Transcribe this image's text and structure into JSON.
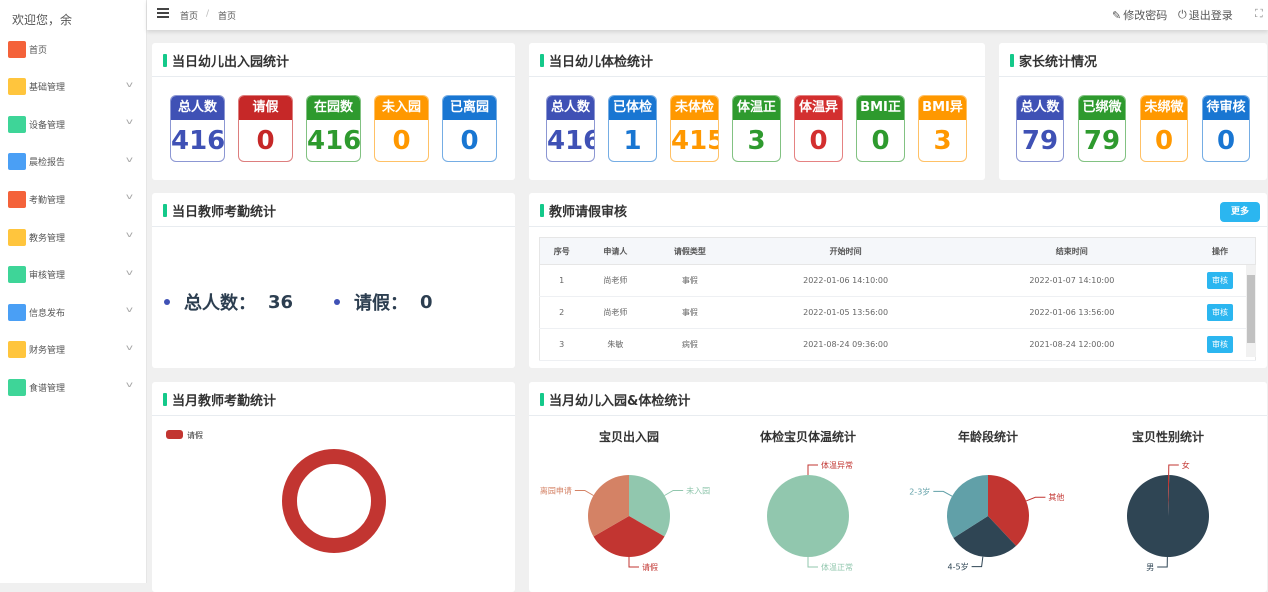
{
  "sidebar": {
    "welcome": "欢迎您，余",
    "items": [
      {
        "label": "首页",
        "icon": "home-icon",
        "color": "#f4623a",
        "chevron": false
      },
      {
        "label": "基础管理",
        "icon": "document-box-icon",
        "color": "#ffc53d",
        "chevron": true
      },
      {
        "label": "设备管理",
        "icon": "monitor-icon",
        "color": "#3ed598",
        "chevron": true
      },
      {
        "label": "晨检报告",
        "icon": "report-icon",
        "color": "#4a9ff5",
        "chevron": true
      },
      {
        "label": "考勤管理",
        "icon": "calendar-check-icon",
        "color": "#f4623a",
        "chevron": true
      },
      {
        "label": "教务管理",
        "icon": "briefcase-icon",
        "color": "#ffc53d",
        "chevron": true
      },
      {
        "label": "审核管理",
        "icon": "audit-icon",
        "color": "#3ed598",
        "chevron": true
      },
      {
        "label": "信息发布",
        "icon": "message-icon",
        "color": "#4a9ff5",
        "chevron": true
      },
      {
        "label": "财务管理",
        "icon": "wallet-icon",
        "color": "#ffc53d",
        "chevron": true
      },
      {
        "label": "食谱管理",
        "icon": "recipe-book-icon",
        "color": "#3ed598",
        "chevron": true
      }
    ]
  },
  "header": {
    "breadcrumb": [
      "首页",
      "首页"
    ],
    "separator": "/",
    "change_password": "修改密码",
    "logout": "退出登录"
  },
  "colors": {
    "indigo": "#3f51b5",
    "red": "#c62828",
    "green": "#2e9a2e",
    "orange": "#ff9800",
    "blue": "#1976d2",
    "accent": "#14c98a"
  },
  "kids_inout": {
    "title": "当日幼儿出入园统计",
    "stats": [
      {
        "label": "总人数",
        "value": "416",
        "color": "#3f51b5"
      },
      {
        "label": "请假",
        "value": "0",
        "color": "#c62828"
      },
      {
        "label": "在园数",
        "value": "416",
        "color": "#2e9a2e"
      },
      {
        "label": "未入园",
        "value": "0",
        "color": "#ff9800"
      },
      {
        "label": "已离园",
        "value": "0",
        "color": "#1976d2"
      }
    ]
  },
  "kids_health": {
    "title": "当日幼儿体检统计",
    "stats": [
      {
        "label": "总人数",
        "value": "416",
        "color": "#3f51b5"
      },
      {
        "label": "已体检",
        "value": "1",
        "color": "#1976d2"
      },
      {
        "label": "未体检",
        "value": "415",
        "color": "#ff9800"
      },
      {
        "label": "体温正",
        "value": "3",
        "color": "#2e9a2e"
      },
      {
        "label": "体温异",
        "value": "0",
        "color": "#d32f2f"
      },
      {
        "label": "BMI正",
        "value": "0",
        "color": "#2e9a2e"
      },
      {
        "label": "BMI异",
        "value": "3",
        "color": "#ff9800"
      }
    ]
  },
  "parents": {
    "title": "家长统计情况",
    "stats": [
      {
        "label": "总人数",
        "value": "79",
        "color": "#3f51b5"
      },
      {
        "label": "已绑微",
        "value": "79",
        "color": "#2e9a2e"
      },
      {
        "label": "未绑微",
        "value": "0",
        "color": "#ff9800"
      },
      {
        "label": "待审核",
        "value": "0",
        "color": "#1976d2"
      }
    ]
  },
  "teacher_today": {
    "title": "当日教师考勤统计",
    "total_label": "总人数：",
    "total": "36",
    "leave_label": "请假：",
    "leave": "0"
  },
  "leave_review": {
    "title": "教师请假审核",
    "more": "更多",
    "columns": [
      "序号",
      "申请人",
      "请假类型",
      "开始时间",
      "结束时间",
      "操作"
    ],
    "rows": [
      [
        "1",
        "尚老师",
        "事假",
        "2022-01-06 14:10:00",
        "2022-01-07 14:10:00",
        "审核"
      ],
      [
        "2",
        "尚老师",
        "事假",
        "2022-01-05 13:56:00",
        "2022-01-06 13:56:00",
        "审核"
      ],
      [
        "3",
        "朱敏",
        "病假",
        "2021-08-24 09:36:00",
        "2021-08-24 12:00:00",
        "审核"
      ]
    ]
  },
  "teacher_month": {
    "title": "当月教师考勤统计"
  },
  "kids_month": {
    "title": "当月幼儿入园&体检统计"
  },
  "chart_data": [
    {
      "type": "pie",
      "variant": "donut",
      "legend": [
        "请假"
      ],
      "legend_placement": "top-left",
      "slices": [
        {
          "name": "请假",
          "value": 100,
          "color": "#c23531"
        }
      ]
    },
    {
      "type": "pie",
      "title": "宝贝出入园",
      "slices": [
        {
          "name": "未入园",
          "value": 33.3,
          "color": "#91c7ae"
        },
        {
          "name": "请假",
          "value": 33.3,
          "color": "#c23531"
        },
        {
          "name": "离园申请",
          "value": 33.3,
          "color": "#d48265"
        }
      ]
    },
    {
      "type": "pie",
      "title": "体检宝贝体温统计",
      "slices": [
        {
          "name": "体温异常",
          "value": 0,
          "color": "#c23531"
        },
        {
          "name": "体温正常",
          "value": 100,
          "color": "#91c7ae"
        }
      ]
    },
    {
      "type": "pie",
      "title": "年龄段统计",
      "slices": [
        {
          "name": "其他",
          "value": 38,
          "color": "#c23531"
        },
        {
          "name": "4-5岁",
          "value": 28,
          "color": "#2f4554"
        },
        {
          "name": "2-3岁",
          "value": 34,
          "color": "#61a0a8"
        }
      ]
    },
    {
      "type": "pie",
      "title": "宝贝性别统计",
      "slices": [
        {
          "name": "女",
          "value": 0.5,
          "color": "#c23531"
        },
        {
          "name": "男",
          "value": 99.5,
          "color": "#2f4554"
        }
      ]
    }
  ]
}
